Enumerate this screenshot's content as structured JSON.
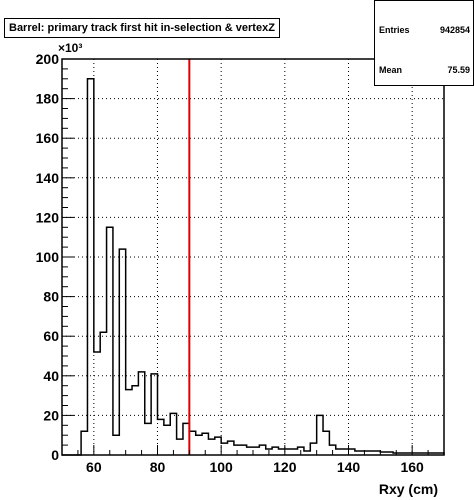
{
  "chart_data": {
    "type": "bar",
    "title": "Barrel: primary track first hit  in-selection & vertexZ",
    "xlabel": "Rxy (cm)",
    "ylabel": "",
    "y_exponent": "×10³",
    "xlim": [
      50,
      170
    ],
    "ylim": [
      0,
      200
    ],
    "x_ticks": [
      60,
      80,
      100,
      120,
      140,
      160
    ],
    "y_ticks": [
      0,
      20,
      40,
      60,
      80,
      100,
      120,
      140,
      160,
      180,
      200
    ],
    "grid": true,
    "bin_width": 2,
    "bin_start": 50,
    "values": [
      0,
      0,
      0,
      12,
      190,
      52,
      62,
      115,
      10,
      104,
      33,
      35,
      42,
      16,
      41,
      18,
      15,
      21,
      8,
      16,
      12,
      10,
      11,
      8,
      9,
      6,
      7,
      5,
      5,
      4,
      4,
      5,
      3,
      4,
      3,
      3,
      3,
      4,
      2,
      6,
      20,
      12,
      5,
      3,
      3,
      3,
      2,
      2,
      2,
      2,
      1.5,
      1.5,
      1,
      1,
      1,
      1,
      1,
      1,
      1,
      1
    ],
    "vertical_line": {
      "x": 90,
      "color": "#e00000"
    },
    "line_color": "#000000",
    "stats": {
      "rows": [
        {
          "label": "Entries",
          "value": "942854"
        },
        {
          "label": "Mean",
          "value": "75.59"
        }
      ]
    }
  }
}
